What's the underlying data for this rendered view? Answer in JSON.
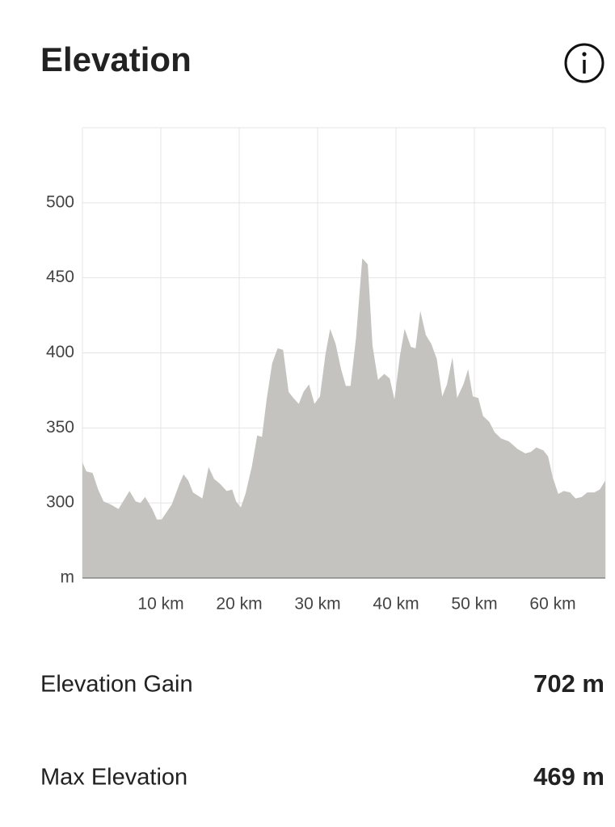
{
  "header": {
    "title": "Elevation"
  },
  "chart_data": {
    "type": "area",
    "color": "#c4c3bf",
    "grid": true,
    "x": [
      0,
      0.5,
      1.3,
      2,
      2.7,
      3.6,
      4.6,
      5.3,
      6,
      6.8,
      7.4,
      8,
      8.9,
      9.5,
      10.1,
      11.4,
      12.4,
      12.9,
      13.5,
      14.1,
      15.3,
      16.1,
      16.8,
      17.5,
      18.4,
      19.1,
      19.6,
      20.2,
      20.8,
      21.6,
      22.3,
      22.9,
      23.5,
      24.2,
      24.9,
      25.6,
      26.3,
      26.9,
      27.6,
      28.2,
      28.9,
      29.6,
      30.3,
      31,
      31.6,
      32.3,
      33,
      33.6,
      34.2,
      34.9,
      35.7,
      36.4,
      37,
      37.7,
      38.5,
      39.2,
      39.8,
      40.5,
      41.1,
      41.9,
      42.5,
      43.1,
      43.8,
      44.5,
      45.2,
      45.9,
      46.5,
      47.2,
      47.8,
      48.6,
      49.2,
      49.8,
      50.5,
      51.1,
      51.9,
      52.6,
      53.4,
      54.4,
      55.5,
      56.5,
      57.2,
      57.9,
      58.8,
      59.4,
      60,
      60.7,
      61.4,
      62.2,
      62.9,
      63.7,
      64.4,
      65.3,
      66,
      66.7
    ],
    "values": [
      327,
      321,
      320,
      309,
      301,
      299,
      296,
      302,
      308,
      301,
      300,
      304,
      296,
      289,
      289,
      299,
      313,
      319,
      315,
      307,
      303,
      324,
      316,
      313,
      308,
      309,
      301,
      297,
      306,
      324,
      345,
      344,
      369,
      393,
      403,
      402,
      374,
      370,
      366,
      374,
      379,
      366,
      371,
      399,
      416,
      406,
      389,
      378,
      378,
      410,
      463,
      459,
      405,
      382,
      386,
      383,
      369,
      398,
      416,
      404,
      403,
      428,
      412,
      406,
      396,
      371,
      379,
      397,
      370,
      379,
      389,
      371,
      370,
      358,
      354,
      347,
      343,
      341,
      336,
      333,
      334,
      337,
      335,
      331,
      317,
      306,
      308,
      307,
      303,
      304,
      307,
      307,
      309,
      315
    ],
    "xlim": [
      0,
      66.7
    ],
    "xticks": [
      {
        "value": 10,
        "label": "10 km"
      },
      {
        "value": 20,
        "label": "20 km"
      },
      {
        "value": 30,
        "label": "30 km"
      },
      {
        "value": 40,
        "label": "40 km"
      },
      {
        "value": 50,
        "label": "50 km"
      },
      {
        "value": 60,
        "label": "60 km"
      }
    ],
    "ylim": [
      250,
      550
    ],
    "yticks": [
      {
        "value": 250,
        "label": "m"
      },
      300,
      350,
      400,
      450,
      500
    ]
  },
  "stats": [
    {
      "label": "Elevation Gain",
      "value": "702 m"
    },
    {
      "label": "Max Elevation",
      "value": "469 m"
    }
  ]
}
